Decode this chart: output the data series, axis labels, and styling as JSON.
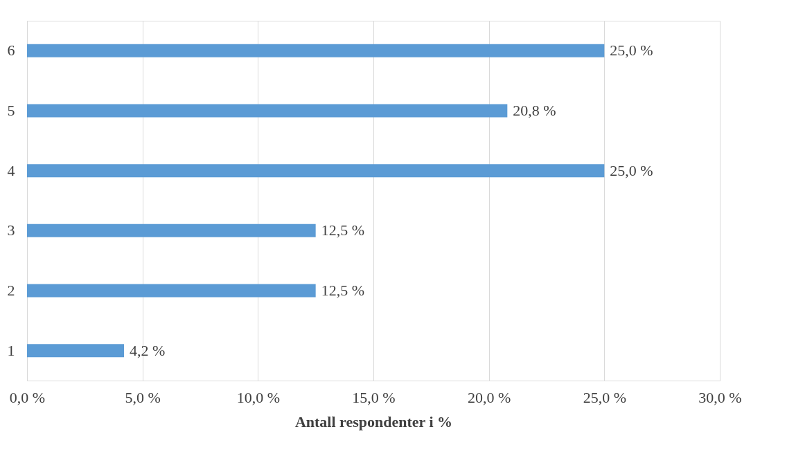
{
  "chart_data": {
    "type": "bar",
    "orientation": "horizontal",
    "xlabel": "Antall respondenter i %",
    "categories": [
      "6",
      "5",
      "4",
      "3",
      "2",
      "1"
    ],
    "values": [
      25.0,
      20.8,
      25.0,
      12.5,
      12.5,
      4.2
    ],
    "value_labels": [
      "25,0 %",
      "20,8 %",
      "25,0 %",
      "12,5 %",
      "12,5 %",
      "4,2 %"
    ],
    "color": "#5b9bd5",
    "xlim": [
      0,
      30
    ],
    "xticks": [
      {
        "value": 0,
        "label": "0,0 %"
      },
      {
        "value": 5,
        "label": "5,0 %"
      },
      {
        "value": 10,
        "label": "10,0 %"
      },
      {
        "value": 15,
        "label": "15,0 %"
      },
      {
        "value": 20,
        "label": "20,0 %"
      },
      {
        "value": 25,
        "label": "25,0 %"
      },
      {
        "value": 30,
        "label": "30,0 %"
      }
    ],
    "grid": "x"
  }
}
